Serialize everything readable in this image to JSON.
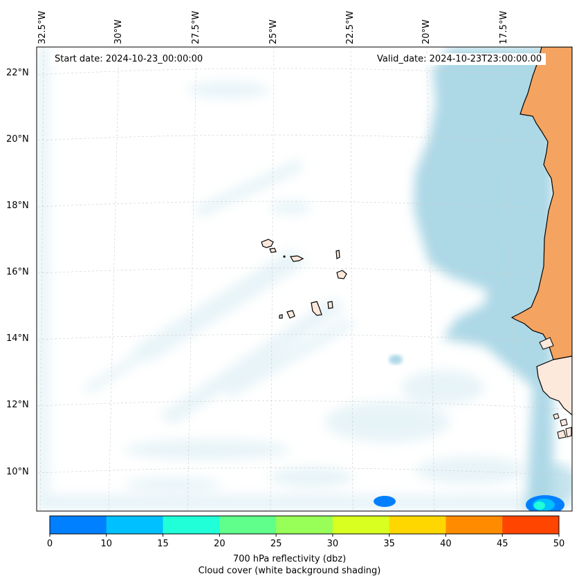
{
  "map": {
    "start_date_text": "Start date: 2024-10-23_00:00:00",
    "valid_date_text": "Valid_date: 2024-10-23T23:00:00.00",
    "longitude_labels": [
      "32.5°W",
      "30°W",
      "27.5°W",
      "25°W",
      "22.5°W",
      "20°W",
      "17.5°W"
    ],
    "latitude_labels": [
      "22°N",
      "20°N",
      "18°N",
      "16°N",
      "14°N",
      "12°N",
      "10°N"
    ],
    "land_color": "#f4a460",
    "cloud_color": "#add8e6",
    "coastline_color": "#000000"
  },
  "colorbar": {
    "ticks": [
      "0",
      "10",
      "15",
      "20",
      "25",
      "30",
      "35",
      "40",
      "45",
      "50"
    ],
    "colors": [
      "#0080ff",
      "#00c0ff",
      "#20ffd8",
      "#60ff8c",
      "#98ff58",
      "#d8ff20",
      "#ffd700",
      "#ff8c00",
      "#ff4500"
    ],
    "label_line1": "700 hPa reflectivity (dbz)",
    "label_line2": "Cloud cover (white background shading)"
  }
}
